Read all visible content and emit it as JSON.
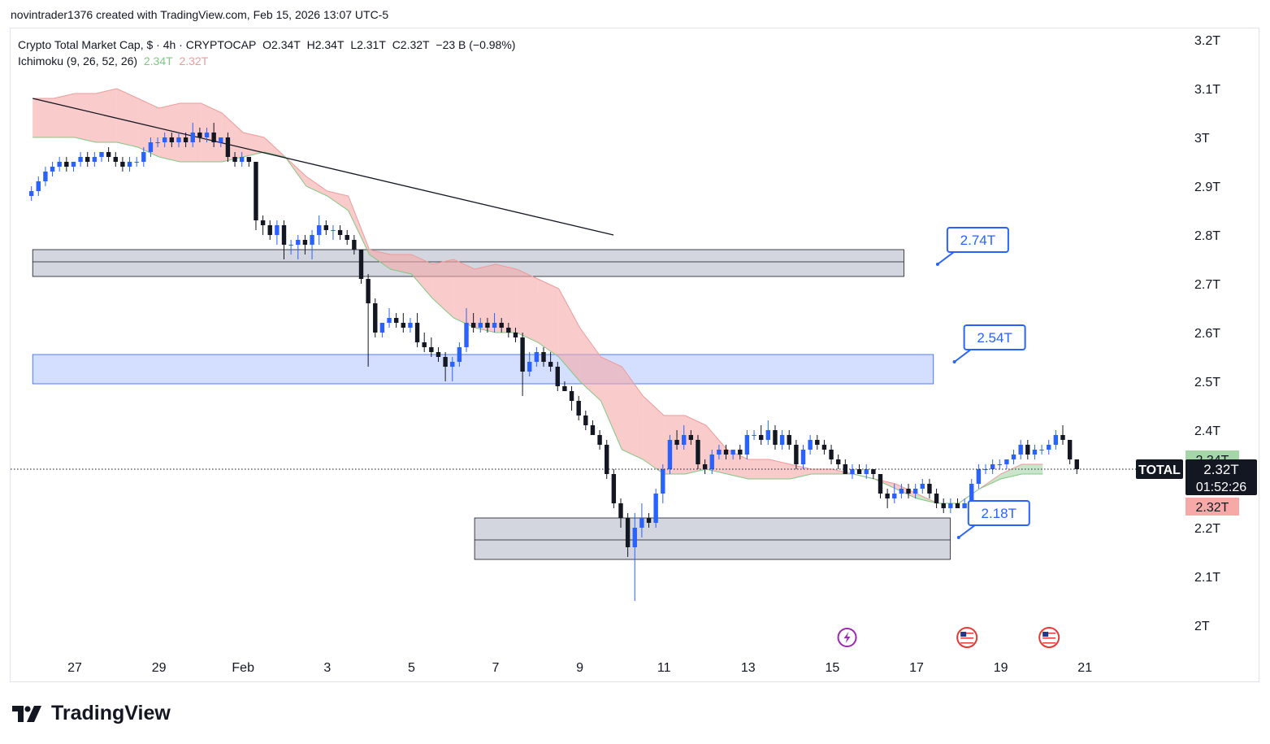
{
  "header": {
    "credit": "novintrader1376 created with TradingView.com, Feb 15, 2026 13:07 UTC-5"
  },
  "legend": {
    "symbol_line": "Crypto Total Market Cap, $ · 4h · CRYPTOCAP",
    "open": "O2.34T",
    "high": "H2.34T",
    "low": "L2.31T",
    "close": "C2.32T",
    "change": "−23 B (−0.98%)",
    "indicator": "Ichimoku (9, 26, 52, 26)",
    "ind_val1": "2.34T",
    "ind_val2": "2.32T"
  },
  "footer": {
    "brand": "TradingView"
  },
  "colors": {
    "up": "#2962ff",
    "down": "#131722",
    "cloud_bear": "#f7a9a8",
    "cloud_bull": "#a5d6a7",
    "zone_gray": "#d1d4dc",
    "zone_blue": "#cfdcff",
    "callout": "#2962ff",
    "price_tag_bg": "#131722",
    "tag_green": "#a5d6a7",
    "tag_red": "#f7a9a8"
  },
  "chart_data": {
    "type": "candlestick",
    "title": "Crypto Total Market Cap, $ · 4h · CRYPTOCAP",
    "xlabel": "",
    "ylabel": "",
    "ylim": [
      1.96,
      3.23
    ],
    "x_range_days": [
      25.9,
      22.3
    ],
    "y_ticks": [
      "3.2T",
      "3.1T",
      "3T",
      "2.9T",
      "2.8T",
      "2.7T",
      "2.6T",
      "2.5T",
      "2.4T",
      "2.3T",
      "2.2T",
      "2.1T",
      "2T"
    ],
    "y_tick_values": [
      3.2,
      3.1,
      3.0,
      2.9,
      2.8,
      2.7,
      2.6,
      2.5,
      2.4,
      2.3,
      2.2,
      2.1,
      2.0
    ],
    "x_ticks": [
      {
        "label": "27",
        "day": 27
      },
      {
        "label": "29",
        "day": 29
      },
      {
        "label": "Feb",
        "day": 31
      },
      {
        "label": "3",
        "day": 33
      },
      {
        "label": "5",
        "day": 35
      },
      {
        "label": "7",
        "day": 37
      },
      {
        "label": "9",
        "day": 39
      },
      {
        "label": "11",
        "day": 41
      },
      {
        "label": "13",
        "day": 43
      },
      {
        "label": "15",
        "day": 45
      },
      {
        "label": "17",
        "day": 47
      },
      {
        "label": "19",
        "day": 49
      },
      {
        "label": "21",
        "day": 51
      }
    ],
    "candle_start_day": 25.97,
    "candle_step_days": 0.1667,
    "candles_ohlc": [
      [
        2.88,
        2.9,
        2.87,
        2.89
      ],
      [
        2.89,
        2.92,
        2.88,
        2.91
      ],
      [
        2.91,
        2.94,
        2.9,
        2.93
      ],
      [
        2.93,
        2.95,
        2.92,
        2.94
      ],
      [
        2.94,
        2.96,
        2.93,
        2.95
      ],
      [
        2.95,
        2.96,
        2.93,
        2.94
      ],
      [
        2.94,
        2.95,
        2.93,
        2.95
      ],
      [
        2.95,
        2.97,
        2.94,
        2.96
      ],
      [
        2.96,
        2.97,
        2.94,
        2.95
      ],
      [
        2.95,
        2.97,
        2.94,
        2.96
      ],
      [
        2.96,
        2.97,
        2.95,
        2.97
      ],
      [
        2.97,
        2.98,
        2.95,
        2.96
      ],
      [
        2.96,
        2.97,
        2.94,
        2.95
      ],
      [
        2.95,
        2.96,
        2.93,
        2.94
      ],
      [
        2.94,
        2.96,
        2.93,
        2.95
      ],
      [
        2.95,
        2.96,
        2.94,
        2.95
      ],
      [
        2.95,
        2.98,
        2.94,
        2.97
      ],
      [
        2.97,
        3.0,
        2.96,
        2.99
      ],
      [
        2.99,
        3.0,
        2.98,
        2.99
      ],
      [
        2.99,
        3.01,
        2.98,
        3.0
      ],
      [
        3.0,
        3.01,
        2.98,
        2.99
      ],
      [
        2.99,
        3.01,
        2.98,
        3.0
      ],
      [
        3.0,
        3.01,
        2.98,
        2.99
      ],
      [
        2.99,
        3.03,
        2.98,
        3.01
      ],
      [
        3.01,
        3.02,
        2.99,
        3.0
      ],
      [
        3.0,
        3.02,
        2.99,
        3.01
      ],
      [
        3.01,
        3.03,
        2.98,
        2.99
      ],
      [
        2.99,
        3.0,
        2.98,
        3.0
      ],
      [
        3.0,
        3.01,
        2.95,
        2.96
      ],
      [
        2.96,
        2.97,
        2.94,
        2.95
      ],
      [
        2.95,
        2.97,
        2.94,
        2.96
      ],
      [
        2.96,
        2.96,
        2.94,
        2.95
      ],
      [
        2.95,
        2.95,
        2.81,
        2.83
      ],
      [
        2.83,
        2.84,
        2.8,
        2.82
      ],
      [
        2.82,
        2.83,
        2.79,
        2.8
      ],
      [
        2.8,
        2.83,
        2.78,
        2.82
      ],
      [
        2.82,
        2.83,
        2.75,
        2.78
      ],
      [
        2.78,
        2.79,
        2.76,
        2.78
      ],
      [
        2.78,
        2.8,
        2.75,
        2.79
      ],
      [
        2.79,
        2.8,
        2.76,
        2.78
      ],
      [
        2.78,
        2.81,
        2.75,
        2.8
      ],
      [
        2.8,
        2.84,
        2.78,
        2.82
      ],
      [
        2.82,
        2.83,
        2.8,
        2.81
      ],
      [
        2.81,
        2.82,
        2.79,
        2.81
      ],
      [
        2.81,
        2.82,
        2.79,
        2.8
      ],
      [
        2.8,
        2.81,
        2.78,
        2.79
      ],
      [
        2.79,
        2.8,
        2.76,
        2.77
      ],
      [
        2.77,
        2.77,
        2.7,
        2.71
      ],
      [
        2.71,
        2.72,
        2.53,
        2.66
      ],
      [
        2.66,
        2.67,
        2.59,
        2.6
      ],
      [
        2.6,
        2.62,
        2.59,
        2.62
      ],
      [
        2.62,
        2.65,
        2.61,
        2.63
      ],
      [
        2.63,
        2.64,
        2.61,
        2.62
      ],
      [
        2.62,
        2.64,
        2.6,
        2.61
      ],
      [
        2.61,
        2.63,
        2.6,
        2.62
      ],
      [
        2.62,
        2.64,
        2.57,
        2.58
      ],
      [
        2.58,
        2.6,
        2.56,
        2.57
      ],
      [
        2.57,
        2.59,
        2.55,
        2.56
      ],
      [
        2.56,
        2.57,
        2.54,
        2.55
      ],
      [
        2.55,
        2.56,
        2.5,
        2.53
      ],
      [
        2.53,
        2.55,
        2.5,
        2.54
      ],
      [
        2.54,
        2.58,
        2.53,
        2.57
      ],
      [
        2.57,
        2.65,
        2.56,
        2.62
      ],
      [
        2.62,
        2.64,
        2.6,
        2.61
      ],
      [
        2.61,
        2.63,
        2.6,
        2.62
      ],
      [
        2.62,
        2.63,
        2.6,
        2.61
      ],
      [
        2.61,
        2.64,
        2.6,
        2.62
      ],
      [
        2.62,
        2.63,
        2.6,
        2.61
      ],
      [
        2.61,
        2.62,
        2.59,
        2.6
      ],
      [
        2.6,
        2.61,
        2.58,
        2.59
      ],
      [
        2.59,
        2.6,
        2.47,
        2.52
      ],
      [
        2.52,
        2.56,
        2.51,
        2.54
      ],
      [
        2.54,
        2.57,
        2.53,
        2.56
      ],
      [
        2.56,
        2.57,
        2.53,
        2.54
      ],
      [
        2.54,
        2.56,
        2.52,
        2.53
      ],
      [
        2.53,
        2.54,
        2.48,
        2.49
      ],
      [
        2.49,
        2.5,
        2.48,
        2.48
      ],
      [
        2.48,
        2.49,
        2.44,
        2.46
      ],
      [
        2.46,
        2.47,
        2.42,
        2.43
      ],
      [
        2.43,
        2.44,
        2.4,
        2.41
      ],
      [
        2.41,
        2.42,
        2.39,
        2.39
      ],
      [
        2.39,
        2.4,
        2.36,
        2.37
      ],
      [
        2.37,
        2.38,
        2.3,
        2.31
      ],
      [
        2.31,
        2.32,
        2.24,
        2.25
      ],
      [
        2.25,
        2.26,
        2.2,
        2.22
      ],
      [
        2.22,
        2.23,
        2.14,
        2.16
      ],
      [
        2.16,
        2.23,
        2.05,
        2.2
      ],
      [
        2.2,
        2.25,
        2.18,
        2.22
      ],
      [
        2.22,
        2.23,
        2.2,
        2.21
      ],
      [
        2.21,
        2.28,
        2.2,
        2.27
      ],
      [
        2.27,
        2.33,
        2.25,
        2.32
      ],
      [
        2.32,
        2.39,
        2.31,
        2.38
      ],
      [
        2.38,
        2.4,
        2.36,
        2.37
      ],
      [
        2.37,
        2.41,
        2.36,
        2.39
      ],
      [
        2.39,
        2.4,
        2.37,
        2.38
      ],
      [
        2.38,
        2.39,
        2.32,
        2.33
      ],
      [
        2.33,
        2.34,
        2.31,
        2.32
      ],
      [
        2.32,
        2.36,
        2.31,
        2.35
      ],
      [
        2.35,
        2.37,
        2.34,
        2.36
      ],
      [
        2.36,
        2.37,
        2.34,
        2.35
      ],
      [
        2.35,
        2.36,
        2.34,
        2.36
      ],
      [
        2.36,
        2.37,
        2.34,
        2.35
      ],
      [
        2.35,
        2.4,
        2.34,
        2.39
      ],
      [
        2.39,
        2.4,
        2.38,
        2.39
      ],
      [
        2.39,
        2.41,
        2.37,
        2.38
      ],
      [
        2.38,
        2.42,
        2.37,
        2.4
      ],
      [
        2.4,
        2.41,
        2.36,
        2.37
      ],
      [
        2.37,
        2.4,
        2.36,
        2.39
      ],
      [
        2.39,
        2.4,
        2.36,
        2.37
      ],
      [
        2.37,
        2.38,
        2.32,
        2.33
      ],
      [
        2.33,
        2.37,
        2.32,
        2.36
      ],
      [
        2.36,
        2.39,
        2.35,
        2.38
      ],
      [
        2.38,
        2.39,
        2.36,
        2.37
      ],
      [
        2.37,
        2.38,
        2.35,
        2.36
      ],
      [
        2.36,
        2.37,
        2.33,
        2.34
      ],
      [
        2.34,
        2.35,
        2.32,
        2.33
      ],
      [
        2.33,
        2.34,
        2.31,
        2.31
      ],
      [
        2.31,
        2.33,
        2.3,
        2.32
      ],
      [
        2.32,
        2.33,
        2.31,
        2.31
      ],
      [
        2.31,
        2.33,
        2.3,
        2.32
      ],
      [
        2.32,
        2.32,
        2.3,
        2.31
      ],
      [
        2.31,
        2.31,
        2.26,
        2.27
      ],
      [
        2.27,
        2.28,
        2.24,
        2.26
      ],
      [
        2.26,
        2.29,
        2.25,
        2.27
      ],
      [
        2.27,
        2.29,
        2.26,
        2.28
      ],
      [
        2.28,
        2.29,
        2.26,
        2.27
      ],
      [
        2.27,
        2.29,
        2.26,
        2.28
      ],
      [
        2.28,
        2.3,
        2.27,
        2.29
      ],
      [
        2.29,
        2.3,
        2.26,
        2.27
      ],
      [
        2.27,
        2.28,
        2.24,
        2.25
      ],
      [
        2.25,
        2.26,
        2.23,
        2.24
      ],
      [
        2.24,
        2.26,
        2.23,
        2.25
      ],
      [
        2.25,
        2.26,
        2.24,
        2.24
      ],
      [
        2.24,
        2.26,
        2.24,
        2.25
      ],
      [
        2.25,
        2.3,
        2.24,
        2.29
      ],
      [
        2.29,
        2.33,
        2.28,
        2.32
      ],
      [
        2.32,
        2.33,
        2.31,
        2.32
      ],
      [
        2.32,
        2.34,
        2.31,
        2.33
      ],
      [
        2.33,
        2.34,
        2.32,
        2.33
      ],
      [
        2.33,
        2.34,
        2.32,
        2.34
      ],
      [
        2.34,
        2.36,
        2.33,
        2.35
      ],
      [
        2.35,
        2.38,
        2.34,
        2.37
      ],
      [
        2.37,
        2.38,
        2.34,
        2.35
      ],
      [
        2.35,
        2.37,
        2.34,
        2.36
      ],
      [
        2.36,
        2.37,
        2.35,
        2.36
      ],
      [
        2.36,
        2.38,
        2.35,
        2.37
      ],
      [
        2.37,
        2.4,
        2.36,
        2.39
      ],
      [
        2.39,
        2.41,
        2.37,
        2.38
      ],
      [
        2.38,
        2.38,
        2.33,
        2.34
      ],
      [
        2.34,
        2.34,
        2.31,
        2.32
      ]
    ],
    "cloud": {
      "x_days": [
        26.0,
        26.5,
        27.0,
        27.5,
        28.0,
        28.5,
        29.0,
        29.5,
        30.0,
        30.5,
        31.0,
        31.5,
        32.0,
        32.5,
        33.0,
        33.5,
        34.0,
        34.5,
        35.0,
        35.5,
        36.0,
        36.5,
        37.0,
        37.5,
        38.0,
        38.5,
        39.0,
        39.5,
        40.0,
        40.5,
        41.0,
        41.5,
        42.0,
        42.5,
        43.0,
        43.5,
        44.0,
        44.5,
        45.0,
        45.5,
        46.0,
        46.5,
        47.0,
        47.5,
        48.0,
        48.5,
        49.0,
        49.5,
        50.0
      ],
      "span_a": [
        3.08,
        3.08,
        3.09,
        3.09,
        3.1,
        3.08,
        3.06,
        3.07,
        3.07,
        3.05,
        3.01,
        3.0,
        2.96,
        2.92,
        2.89,
        2.88,
        2.77,
        2.76,
        2.76,
        2.74,
        2.75,
        2.73,
        2.74,
        2.73,
        2.71,
        2.69,
        2.61,
        2.55,
        2.53,
        2.47,
        2.43,
        2.43,
        2.41,
        2.36,
        2.34,
        2.34,
        2.33,
        2.32,
        2.32,
        2.31,
        2.3,
        2.29,
        2.27,
        2.25,
        2.25,
        2.28,
        2.31,
        2.33,
        2.33
      ],
      "span_b": [
        3.0,
        3.0,
        3.0,
        2.99,
        2.99,
        2.98,
        2.96,
        2.95,
        2.95,
        2.95,
        2.96,
        2.97,
        2.96,
        2.9,
        2.88,
        2.85,
        2.76,
        2.73,
        2.72,
        2.67,
        2.63,
        2.61,
        2.6,
        2.6,
        2.58,
        2.55,
        2.5,
        2.46,
        2.36,
        2.34,
        2.31,
        2.31,
        2.32,
        2.31,
        2.3,
        2.3,
        2.3,
        2.31,
        2.31,
        2.31,
        2.3,
        2.28,
        2.26,
        2.25,
        2.25,
        2.28,
        2.3,
        2.31,
        2.31
      ]
    },
    "trendline": {
      "x0_day": 26.0,
      "y0": 3.08,
      "x1_day": 39.8,
      "y1": 2.8
    },
    "zones": [
      {
        "name": "upper-gray-zone",
        "x0_day": 26.0,
        "x1_day": 46.7,
        "y_top": 2.77,
        "y_mid": 2.745,
        "y_bottom": 2.715,
        "color": "gray"
      },
      {
        "name": "blue-zone",
        "x0_day": 26.0,
        "x1_day": 47.4,
        "y_top": 2.555,
        "y_bottom": 2.495,
        "color": "blue"
      },
      {
        "name": "lower-gray-zone",
        "x0_day": 36.5,
        "x1_day": 47.8,
        "y_top": 2.22,
        "y_mid": 2.175,
        "y_bottom": 2.135,
        "color": "gray"
      }
    ],
    "callouts": [
      {
        "label": "2.74T",
        "value": 2.74,
        "day": 47.5
      },
      {
        "label": "2.54T",
        "value": 2.54,
        "day": 47.9
      },
      {
        "label": "2.18T",
        "value": 2.18,
        "day": 48.0
      }
    ],
    "current_price_value": 2.32,
    "price_tags": {
      "symbol": "TOTAL",
      "current": "2.32T",
      "countdown": "01:52:26",
      "span_a_tag": "2.34T",
      "span_b_tag": "2.32T",
      "span_a_value": 2.34,
      "span_b_value": 2.32
    },
    "events": [
      {
        "name": "lightning-event-icon",
        "day": 45.35
      },
      {
        "name": "us-flag-event-icon",
        "day": 48.2
      },
      {
        "name": "us-flag-event-icon",
        "day": 50.15
      }
    ]
  }
}
